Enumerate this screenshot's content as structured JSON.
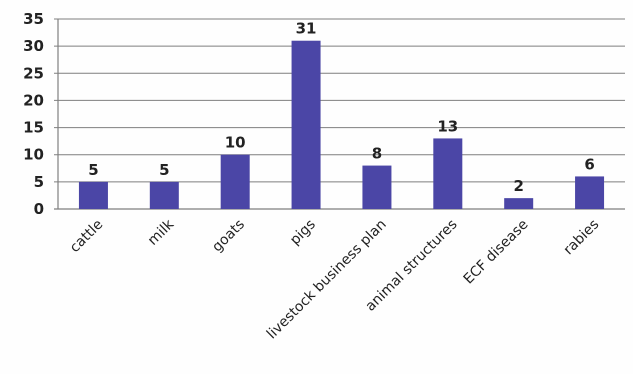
{
  "chart_data": {
    "type": "bar",
    "categories": [
      "cattle",
      "milk",
      "goats",
      "pigs",
      "livestock business plan",
      "animal structures",
      "ECF  disease",
      "rabies"
    ],
    "values": [
      5,
      5,
      10,
      31,
      8,
      13,
      2,
      6
    ],
    "data_labels": [
      "5",
      "5",
      "10",
      "31",
      "8",
      "13",
      "2",
      "6"
    ],
    "title": "",
    "xlabel": "",
    "ylabel": "",
    "ylim": [
      0,
      35
    ],
    "yticks": [
      0,
      5,
      10,
      15,
      20,
      25,
      30,
      35
    ],
    "ytick_labels": [
      "0",
      "5",
      "10",
      "15",
      "20",
      "25",
      "30",
      "35"
    ],
    "grid": true,
    "legend": "none",
    "bar_color": "#4b46a6"
  }
}
